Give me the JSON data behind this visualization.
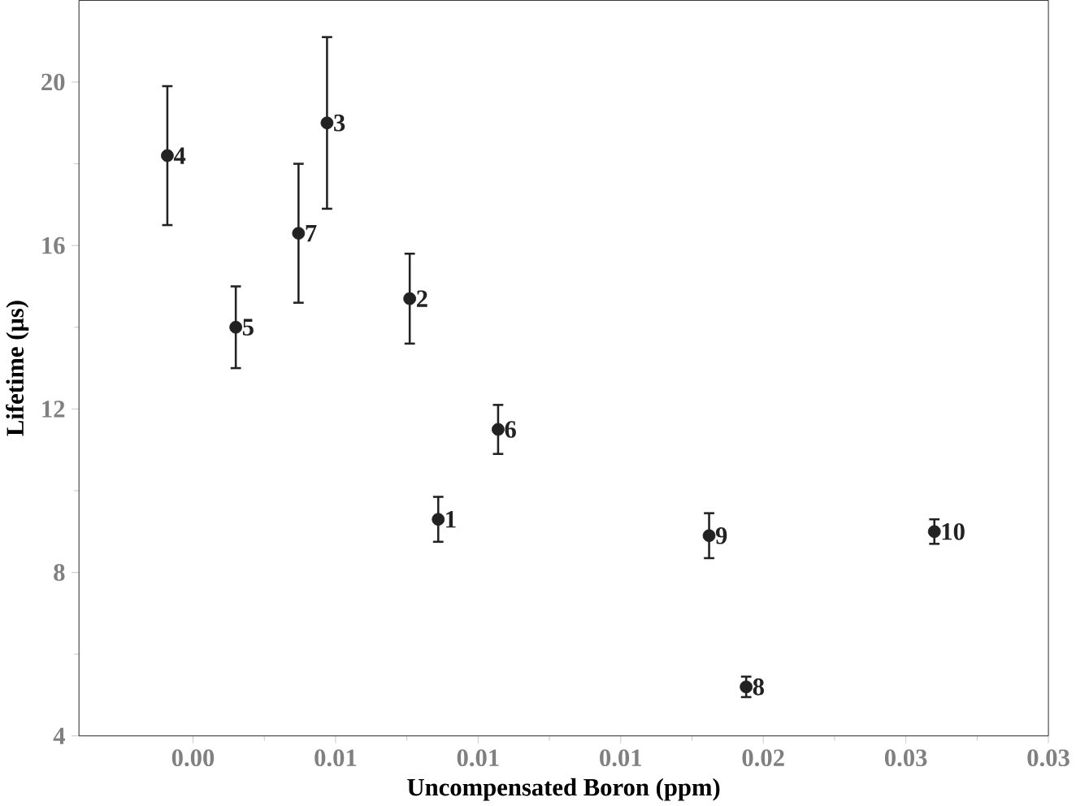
{
  "chart_data": {
    "type": "scatter",
    "xlabel": "Uncompensated Boron (ppm)",
    "ylabel": "Lifetime (μs)",
    "x": [
      0.0086,
      0.0076,
      0.0047,
      -0.0009,
      0.0015,
      0.0107,
      0.0037,
      0.0194,
      0.0181,
      0.026
    ],
    "values": [
      9.3,
      14.7,
      19.0,
      18.2,
      14.0,
      11.5,
      16.3,
      5.2,
      8.9,
      9.0
    ],
    "errors": [
      0.55,
      1.1,
      2.1,
      1.7,
      1.0,
      0.6,
      1.7,
      0.25,
      0.55,
      0.3
    ],
    "color": "#222222",
    "marker": "circle",
    "annotations": [
      {
        "text": "1",
        "x": 0.0086,
        "y": 9.3
      },
      {
        "text": "2",
        "x": 0.0076,
        "y": 14.7
      },
      {
        "text": "3",
        "x": 0.0047,
        "y": 19.0
      },
      {
        "text": "4",
        "x": -0.0009,
        "y": 18.2
      },
      {
        "text": "5",
        "x": 0.0015,
        "y": 14.0
      },
      {
        "text": "6",
        "x": 0.0107,
        "y": 11.5
      },
      {
        "text": "7",
        "x": 0.0037,
        "y": 16.3
      },
      {
        "text": "8",
        "x": 0.0194,
        "y": 5.2
      },
      {
        "text": "9",
        "x": 0.0181,
        "y": 8.9
      },
      {
        "text": "10",
        "x": 0.026,
        "y": 9.0
      }
    ],
    "xlim": [
      -0.004,
      0.03
    ],
    "ylim": [
      4,
      22
    ],
    "xticks": [
      {
        "value": 0,
        "label": "0.00"
      },
      {
        "value": 0.005,
        "label": "0.01"
      },
      {
        "value": 0.01,
        "label": "0.01"
      },
      {
        "value": 0.015,
        "label": "0.01"
      },
      {
        "value": 0.02,
        "label": "0.02"
      },
      {
        "value": 0.025,
        "label": "0.03"
      },
      {
        "value": 0.03,
        "label": "0.03"
      }
    ],
    "yticks": [
      4,
      8,
      12,
      16,
      20
    ],
    "grid": false
  }
}
